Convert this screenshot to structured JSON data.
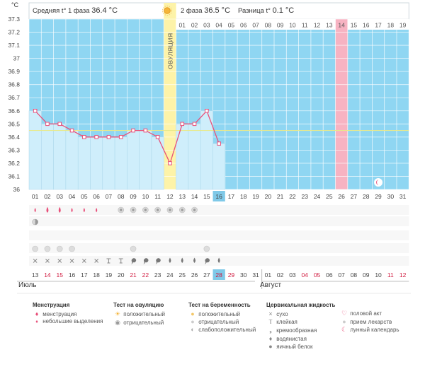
{
  "unit_label": "°C",
  "header": {
    "phase1_label": "Средняя t° 1 фаза",
    "phase1_value": "36.4 °C",
    "phase2_label": "2 фаза",
    "phase2_value": "36.5 °C",
    "diff_label": "Разница t°",
    "diff_value": "0.1 °C"
  },
  "ovulation_label": "ОВУЛЯЦИЯ",
  "months": {
    "july": "Июль",
    "august": "Август"
  },
  "cycle_days_phase2": [
    "01",
    "02",
    "03",
    "04",
    "05",
    "06",
    "07",
    "08",
    "09",
    "10",
    "11",
    "12",
    "13",
    "14",
    "15",
    "16",
    "17",
    "18",
    "19"
  ],
  "chart_data": {
    "type": "line",
    "y_ticks": [
      "36",
      "36.1",
      "36.2",
      "36.3",
      "36.4",
      "36.5",
      "36.6",
      "36.7",
      "36.8",
      "36.9",
      "37",
      "37.1",
      "37.2",
      "37.3"
    ],
    "ylim": [
      36,
      37.3
    ],
    "cycle_days": [
      "01",
      "02",
      "03",
      "04",
      "05",
      "06",
      "07",
      "08",
      "09",
      "10",
      "11",
      "12",
      "13",
      "14",
      "15",
      "16",
      "17",
      "18",
      "19",
      "20",
      "21",
      "22",
      "23",
      "24",
      "25",
      "26",
      "27",
      "28",
      "29",
      "30",
      "31"
    ],
    "series": [
      {
        "values": [
          36.6,
          36.5,
          36.5,
          36.45,
          36.4,
          36.4,
          36.4,
          36.4,
          36.45,
          36.45,
          36.4,
          36.2,
          36.5,
          36.5,
          36.6,
          36.35
        ]
      }
    ],
    "coverline": 36.45,
    "ovulation_day": 12,
    "current_day": 16,
    "highlight_day": 26
  },
  "calendar_dates": [
    "13",
    "14",
    "15",
    "16",
    "17",
    "18",
    "19",
    "20",
    "21",
    "22",
    "23",
    "24",
    "25",
    "26",
    "27",
    "28",
    "29",
    "30",
    "31",
    "01",
    "02",
    "03",
    "04",
    "05",
    "06",
    "07",
    "08",
    "09",
    "10",
    "11",
    "12"
  ],
  "red_date_indices": [
    1,
    2,
    8,
    9,
    15,
    16,
    22,
    23,
    29,
    30
  ],
  "legend": {
    "menstruation": {
      "title": "Менструация",
      "items": [
        "менструация",
        "небольшие выделения"
      ]
    },
    "ovulation_test": {
      "title": "Тест на овуляцию",
      "items": [
        "положительный",
        "отрицательный"
      ]
    },
    "pregnancy_test": {
      "title": "Тест на беременность",
      "items": [
        "положительный",
        "отрицательный",
        "слабоположительный"
      ]
    },
    "cervical": {
      "title": "Цервикальная жидкость",
      "items": [
        "сухо",
        "клейкая",
        "кремообразная",
        "водянистая",
        "яичный белок"
      ]
    },
    "other": {
      "items": [
        "половой акт",
        "прием лекарств",
        "лунный календарь"
      ]
    }
  },
  "colors": {
    "sky": "#8fd6f2",
    "bar": "#cfeefb",
    "line": "#e8507a",
    "ovulation": "#fdf3a8",
    "highlight": "#f7b3c2",
    "coverline": "#e9e98a",
    "today": "#7fc9e8"
  }
}
